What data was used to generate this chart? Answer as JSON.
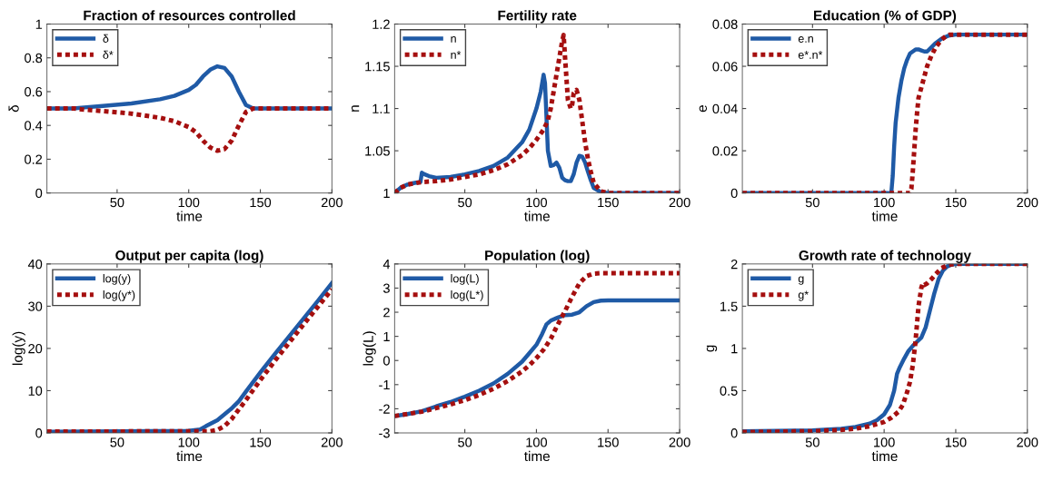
{
  "chart_data": [
    {
      "type": "line",
      "title": "Fraction of resources controlled",
      "xlabel": "time",
      "ylabel": "δ",
      "xlim": [
        1,
        200
      ],
      "xticks": [
        50,
        100,
        150,
        200
      ],
      "ylim": [
        0,
        1
      ],
      "yticks": [
        0,
        0.2,
        0.4,
        0.6,
        0.8,
        1
      ],
      "legend": "top left",
      "grid": false,
      "series": [
        {
          "name": "δ",
          "color": "#1f5aa6",
          "line_style": "solid",
          "x": [
            1,
            20,
            25,
            40,
            60,
            80,
            90,
            100,
            105,
            110,
            115,
            120,
            125,
            130,
            135,
            140,
            145,
            200
          ],
          "values": [
            0.5,
            0.5,
            0.505,
            0.515,
            0.53,
            0.555,
            0.575,
            0.61,
            0.64,
            0.69,
            0.73,
            0.75,
            0.74,
            0.69,
            0.6,
            0.52,
            0.5,
            0.5
          ]
        },
        {
          "name": "δ*",
          "color": "#a50f0f",
          "line_style": "dotted",
          "x": [
            1,
            20,
            25,
            40,
            60,
            80,
            90,
            100,
            105,
            110,
            115,
            120,
            125,
            130,
            135,
            140,
            145,
            200
          ],
          "values": [
            0.5,
            0.5,
            0.495,
            0.485,
            0.47,
            0.445,
            0.425,
            0.39,
            0.36,
            0.31,
            0.27,
            0.25,
            0.26,
            0.31,
            0.4,
            0.48,
            0.5,
            0.5
          ]
        }
      ]
    },
    {
      "type": "line",
      "title": "Fertility rate",
      "xlabel": "time",
      "ylabel": "n",
      "xlim": [
        1,
        200
      ],
      "xticks": [
        50,
        100,
        150,
        200
      ],
      "ylim": [
        1,
        1.2
      ],
      "yticks": [
        1,
        1.05,
        1.1,
        1.15,
        1.2
      ],
      "legend": "top left",
      "grid": false,
      "series": [
        {
          "name": "n",
          "color": "#1f5aa6",
          "line_style": "solid",
          "x": [
            1,
            5,
            10,
            15,
            19,
            20,
            22,
            25,
            30,
            40,
            50,
            60,
            70,
            80,
            90,
            95,
            100,
            103,
            105,
            106,
            107,
            108,
            110,
            112,
            114,
            116,
            118,
            120,
            122,
            124,
            126,
            128,
            130,
            132,
            134,
            136,
            138,
            140,
            145,
            150,
            200
          ],
          "values": [
            1,
            1.006,
            1.01,
            1.012,
            1.013,
            1.024,
            1.022,
            1.02,
            1.018,
            1.019,
            1.022,
            1.026,
            1.032,
            1.042,
            1.06,
            1.075,
            1.1,
            1.12,
            1.14,
            1.13,
            1.09,
            1.05,
            1.032,
            1.033,
            1.036,
            1.03,
            1.018,
            1.015,
            1.014,
            1.014,
            1.022,
            1.036,
            1.044,
            1.043,
            1.036,
            1.025,
            1.015,
            1.006,
            1.001,
            1,
            1
          ]
        },
        {
          "name": "n*",
          "color": "#a50f0f",
          "line_style": "dotted",
          "x": [
            1,
            5,
            10,
            20,
            30,
            40,
            50,
            60,
            70,
            80,
            90,
            95,
            100,
            105,
            108,
            110,
            112,
            114,
            116,
            118,
            119,
            120,
            122,
            124,
            125,
            126,
            128,
            130,
            132,
            134,
            136,
            138,
            140,
            145,
            150,
            200
          ],
          "values": [
            1,
            1.006,
            1.01,
            1.013,
            1.014,
            1.016,
            1.019,
            1.022,
            1.027,
            1.034,
            1.045,
            1.053,
            1.063,
            1.075,
            1.086,
            1.1,
            1.12,
            1.14,
            1.16,
            1.18,
            1.187,
            1.16,
            1.11,
            1.1,
            1.105,
            1.118,
            1.122,
            1.11,
            1.085,
            1.06,
            1.04,
            1.025,
            1.012,
            1.002,
            1,
            1
          ]
        }
      ]
    },
    {
      "type": "line",
      "title": "Education (% of GDP)",
      "xlabel": "time",
      "ylabel": "e",
      "xlim": [
        1,
        200
      ],
      "xticks": [
        50,
        100,
        150,
        200
      ],
      "ylim": [
        0,
        0.08
      ],
      "yticks": [
        0,
        0.02,
        0.04,
        0.06,
        0.08
      ],
      "legend": "top left",
      "grid": false,
      "series": [
        {
          "name": "e.n",
          "color": "#1f5aa6",
          "line_style": "solid",
          "x": [
            1,
            104,
            105,
            106,
            107,
            108,
            110,
            112,
            114,
            116,
            118,
            120,
            122,
            124,
            126,
            128,
            130,
            133,
            136,
            140,
            145,
            150,
            200
          ],
          "values": [
            0,
            0,
            0,
            0.008,
            0.022,
            0.033,
            0.045,
            0.053,
            0.059,
            0.063,
            0.066,
            0.067,
            0.068,
            0.068,
            0.0675,
            0.067,
            0.067,
            0.069,
            0.071,
            0.073,
            0.0745,
            0.075,
            0.075
          ]
        },
        {
          "name": "e*.n*",
          "color": "#a50f0f",
          "line_style": "dotted",
          "x": [
            1,
            118,
            119,
            120,
            121,
            122,
            123,
            124,
            126,
            128,
            130,
            133,
            136,
            140,
            143,
            146,
            150,
            200
          ],
          "values": [
            0,
            0,
            0.002,
            0.01,
            0.02,
            0.03,
            0.038,
            0.045,
            0.05,
            0.055,
            0.06,
            0.065,
            0.069,
            0.0725,
            0.0742,
            0.075,
            0.075,
            0.075
          ]
        }
      ]
    },
    {
      "type": "line",
      "title": "Output per capita (log)",
      "xlabel": "time",
      "ylabel": "log(y)",
      "xlim": [
        1,
        200
      ],
      "xticks": [
        50,
        100,
        150,
        200
      ],
      "ylim": [
        0,
        40
      ],
      "yticks": [
        0,
        10,
        20,
        30,
        40
      ],
      "legend": "top left",
      "grid": false,
      "series": [
        {
          "name": "log(y)",
          "color": "#1f5aa6",
          "line_style": "solid",
          "x": [
            1,
            100,
            108,
            112,
            120,
            130,
            135,
            140,
            150,
            160,
            170,
            180,
            190,
            200
          ],
          "values": [
            0.3,
            0.5,
            0.8,
            1.6,
            3,
            5.8,
            7.5,
            9.8,
            14.3,
            18.6,
            22.8,
            27,
            31.2,
            35.5
          ]
        },
        {
          "name": "log(y*)",
          "color": "#a50f0f",
          "line_style": "dotted",
          "x": [
            1,
            115,
            120,
            125,
            130,
            140,
            150,
            160,
            170,
            180,
            190,
            200
          ],
          "values": [
            0.3,
            0.4,
            0.7,
            1.6,
            3.3,
            7.8,
            12.5,
            17,
            21.3,
            25.6,
            29.8,
            34
          ]
        }
      ]
    },
    {
      "type": "line",
      "title": "Population (log)",
      "xlabel": "time",
      "ylabel": "log(L)",
      "xlim": [
        1,
        200
      ],
      "xticks": [
        50,
        100,
        150,
        200
      ],
      "ylim": [
        -3,
        4
      ],
      "yticks": [
        -3,
        -2,
        -1,
        0,
        1,
        2,
        3,
        4
      ],
      "legend": "top left",
      "grid": false,
      "series": [
        {
          "name": "log(L)",
          "color": "#1f5aa6",
          "line_style": "solid",
          "x": [
            1,
            10,
            20,
            30,
            40,
            50,
            60,
            70,
            80,
            90,
            95,
            100,
            104,
            107,
            110,
            115,
            120,
            125,
            130,
            135,
            140,
            145,
            150,
            200
          ],
          "values": [
            -2.3,
            -2.22,
            -2.1,
            -1.9,
            -1.72,
            -1.5,
            -1.25,
            -0.95,
            -0.55,
            -0.05,
            0.3,
            0.65,
            1.1,
            1.5,
            1.65,
            1.78,
            1.88,
            1.9,
            2.0,
            2.25,
            2.42,
            2.48,
            2.49,
            2.49
          ]
        },
        {
          "name": "log(L*)",
          "color": "#a50f0f",
          "line_style": "dotted",
          "x": [
            1,
            10,
            20,
            30,
            40,
            50,
            60,
            70,
            80,
            90,
            95,
            100,
            105,
            110,
            115,
            120,
            125,
            130,
            135,
            140,
            145,
            150,
            200
          ],
          "values": [
            -2.3,
            -2.22,
            -2.12,
            -1.97,
            -1.82,
            -1.64,
            -1.43,
            -1.17,
            -0.85,
            -0.45,
            -0.2,
            0.1,
            0.45,
            0.9,
            1.5,
            2.05,
            2.65,
            3.2,
            3.5,
            3.6,
            3.62,
            3.62,
            3.62
          ]
        }
      ]
    },
    {
      "type": "line",
      "title": "Growth rate of technology",
      "xlabel": "time",
      "ylabel": "g",
      "xlim": [
        1,
        200
      ],
      "xticks": [
        50,
        100,
        150,
        200
      ],
      "ylim": [
        0,
        2
      ],
      "yticks": [
        0,
        0.5,
        1,
        1.5,
        2
      ],
      "legend": "top left",
      "grid": false,
      "series": [
        {
          "name": "g",
          "color": "#1f5aa6",
          "line_style": "solid",
          "x": [
            1,
            50,
            70,
            80,
            90,
            95,
            100,
            104,
            107,
            109,
            111,
            114,
            117,
            120,
            123,
            126,
            129,
            132,
            135,
            138,
            141,
            144,
            147,
            150,
            200
          ],
          "values": [
            0.02,
            0.03,
            0.05,
            0.07,
            0.11,
            0.15,
            0.22,
            0.33,
            0.5,
            0.7,
            0.78,
            0.88,
            0.97,
            1.03,
            1.08,
            1.13,
            1.25,
            1.45,
            1.65,
            1.82,
            1.92,
            1.97,
            1.99,
            2,
            2
          ]
        },
        {
          "name": "g*",
          "color": "#a50f0f",
          "line_style": "dotted",
          "x": [
            1,
            50,
            70,
            80,
            90,
            100,
            105,
            110,
            113,
            116,
            118,
            120,
            122,
            124,
            126,
            127,
            128,
            130,
            133,
            136,
            140,
            145,
            150,
            200
          ],
          "values": [
            0.01,
            0.02,
            0.035,
            0.05,
            0.08,
            0.13,
            0.18,
            0.25,
            0.33,
            0.48,
            0.6,
            0.8,
            1.1,
            1.5,
            1.72,
            1.77,
            1.75,
            1.77,
            1.82,
            1.88,
            1.95,
            1.99,
            2,
            2
          ]
        }
      ]
    }
  ]
}
